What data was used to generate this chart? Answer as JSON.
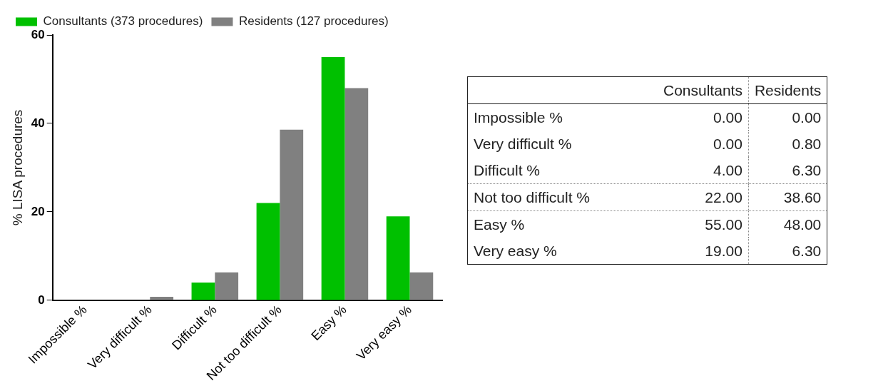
{
  "chart_data": [
    {
      "type": "bar",
      "ylabel": "% LISA procedures",
      "categories": [
        "Impossible %",
        "Very difficult %",
        "Difficult %",
        "Not too difficult %",
        "Easy %",
        "Very easy %"
      ],
      "series": [
        {
          "name": "Consultants (373 procedures)",
          "color": "#00c000",
          "values": [
            0,
            0,
            4,
            22,
            55,
            19
          ]
        },
        {
          "name": "Residents (127 procedures)",
          "color": "#808080",
          "values": [
            0,
            0.8,
            6.3,
            38.6,
            48,
            6.3
          ]
        }
      ],
      "ylim": [
        0,
        60
      ],
      "yticks": [
        0,
        20,
        40,
        60
      ],
      "grid": false,
      "legend": "top left"
    },
    {
      "type": "other",
      "categories": [
        "Impossible %",
        "Very difficult %",
        "Difficult %",
        "Not too difficult %",
        "Easy %",
        "Very easy %"
      ],
      "series": [
        {
          "name": "Consultants",
          "values": [
            0,
            0,
            4,
            22,
            55,
            19
          ],
          "value_labels": [
            "0.00",
            "0.00",
            "4.00",
            "22.00",
            "55.00",
            "19.00"
          ]
        },
        {
          "name": "Residents",
          "values": [
            0,
            0.8,
            6.3,
            38.6,
            48,
            6.3
          ],
          "value_labels": [
            "0.00",
            "0.80",
            "6.30",
            "38.60",
            "48.00",
            "6.30"
          ]
        }
      ]
    }
  ]
}
